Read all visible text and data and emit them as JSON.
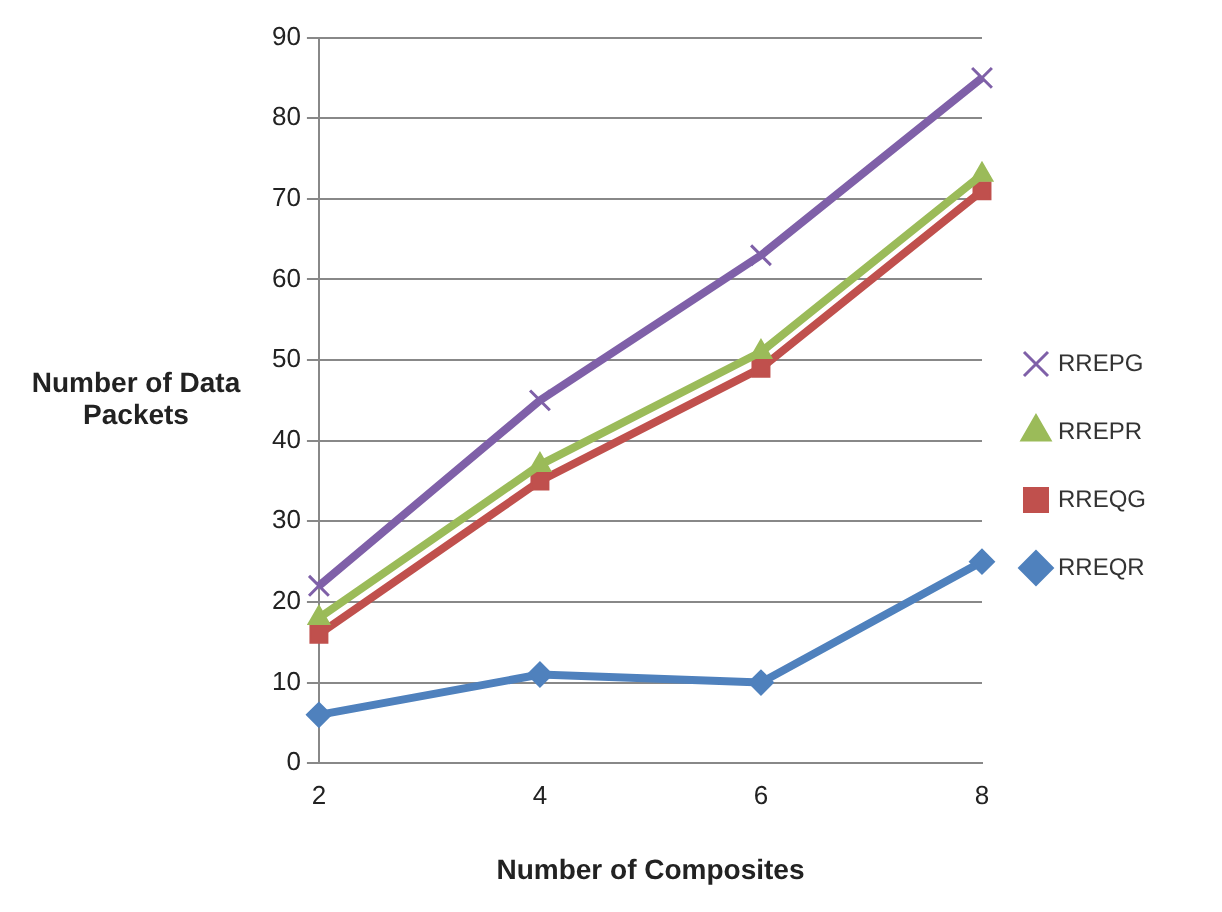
{
  "chart_data": {
    "type": "line",
    "xlabel": "Number of Composites",
    "ylabel": "Number of Data Packets",
    "categories": [
      "2",
      "4",
      "6",
      "8"
    ],
    "series": [
      {
        "name": "RREPG",
        "color": "#7f60a8",
        "marker": "cross",
        "values": [
          22,
          45,
          63,
          85
        ]
      },
      {
        "name": "RREPR",
        "color": "#9bbb59",
        "marker": "triangle",
        "values": [
          18,
          37,
          51,
          73
        ]
      },
      {
        "name": "RREQG",
        "color": "#c0504d",
        "marker": "square",
        "values": [
          16,
          35,
          49,
          71
        ]
      },
      {
        "name": "RREQR",
        "color": "#4f81bd",
        "marker": "diamond",
        "values": [
          6,
          11,
          10,
          25
        ]
      }
    ],
    "ylim": [
      0,
      90
    ],
    "yticks": [
      0,
      10,
      20,
      30,
      40,
      50,
      60,
      70,
      80,
      90
    ],
    "grid": "y",
    "legend": "right"
  }
}
